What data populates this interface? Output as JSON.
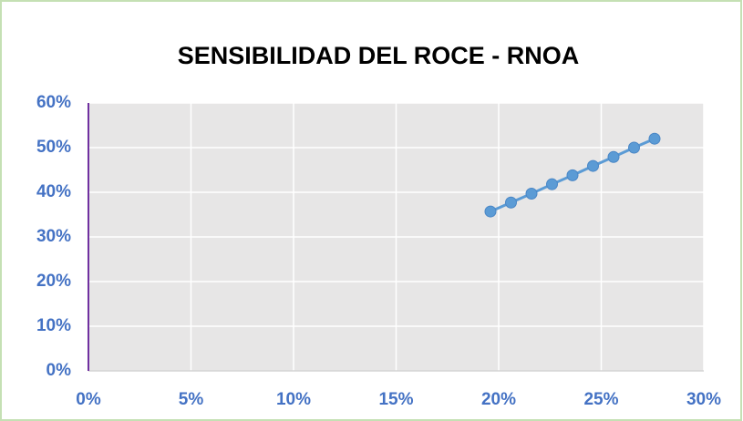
{
  "chart_data": {
    "type": "line",
    "title": "SENSIBILIDAD DEL ROCE - RNOA",
    "series": [
      {
        "color": "#5b9bd5",
        "x": [
          19.6,
          20.6,
          21.6,
          22.6,
          23.6,
          24.6,
          25.6,
          26.6,
          27.6
        ],
        "values": [
          35.7,
          37.7,
          39.7,
          41.8,
          43.8,
          45.9,
          47.9,
          50.0,
          52.0
        ]
      }
    ],
    "xlim": [
      0,
      30
    ],
    "xticks": [
      {
        "value": 0,
        "label": "0%"
      },
      {
        "value": 5,
        "label": "5%"
      },
      {
        "value": 10,
        "label": "10%"
      },
      {
        "value": 15,
        "label": "15%"
      },
      {
        "value": 20,
        "label": "20%"
      },
      {
        "value": 25,
        "label": "25%"
      },
      {
        "value": 30,
        "label": "30%"
      }
    ],
    "ylim": [
      0,
      60
    ],
    "yticks": [
      {
        "value": 0,
        "label": "0%"
      },
      {
        "value": 10,
        "label": "10%"
      },
      {
        "value": 20,
        "label": "20%"
      },
      {
        "value": 30,
        "label": "30%"
      },
      {
        "value": 40,
        "label": "40%"
      },
      {
        "value": 50,
        "label": "50%"
      },
      {
        "value": 60,
        "label": "60%"
      }
    ],
    "grid": true
  }
}
